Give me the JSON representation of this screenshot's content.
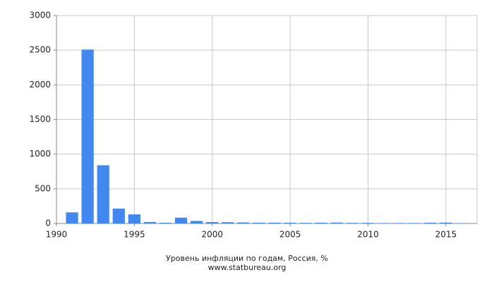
{
  "chart_data": {
    "type": "bar",
    "x": [
      1991,
      1992,
      1993,
      1994,
      1995,
      1996,
      1997,
      1998,
      1999,
      2000,
      2001,
      2002,
      2003,
      2004,
      2005,
      2006,
      2007,
      2008,
      2009,
      2010,
      2011,
      2012,
      2013,
      2014,
      2015,
      2016
    ],
    "values": [
      160.4,
      2508.8,
      839.9,
      215.1,
      131.3,
      21.8,
      11.0,
      84.4,
      36.5,
      20.2,
      18.6,
      15.1,
      12.0,
      11.7,
      10.9,
      9.0,
      11.9,
      13.3,
      8.8,
      8.8,
      6.1,
      6.6,
      6.5,
      11.4,
      12.9,
      5.4
    ],
    "color": "#4288ee",
    "xlim": [
      1990,
      2017
    ],
    "xticks": [
      1990,
      1995,
      2000,
      2005,
      2010,
      2015
    ],
    "ylim": [
      0,
      3000
    ],
    "yticks": [
      0,
      500,
      1000,
      1500,
      2000,
      2500,
      3000
    ],
    "grid": true,
    "caption": "Уровень инфляции по годам, Россия, %",
    "source": "www.statbureau.org"
  }
}
